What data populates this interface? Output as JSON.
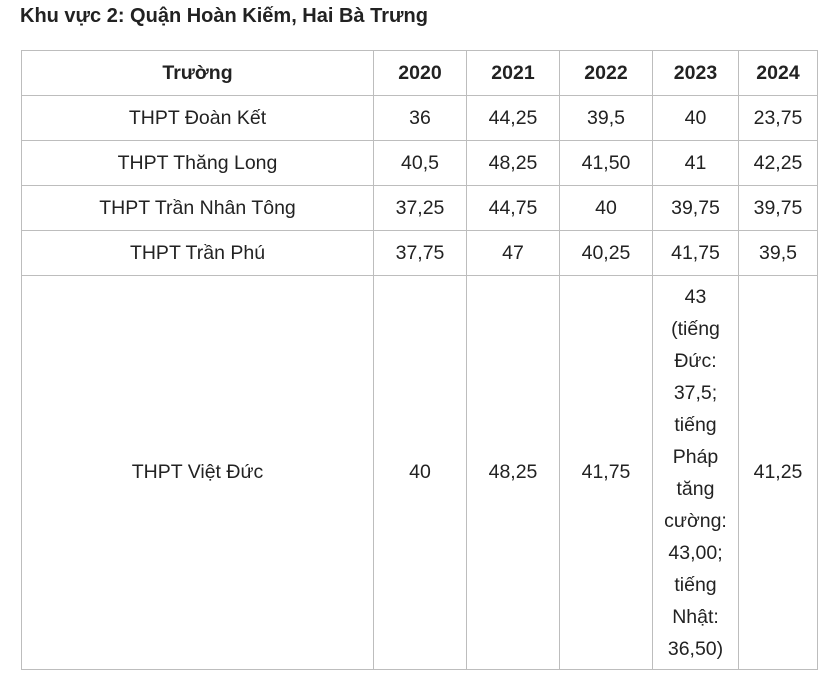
{
  "heading": "Khu vực 2: Quận Hoàn Kiếm, Hai Bà Trưng",
  "table": {
    "headers": [
      "Trường",
      "2020",
      "2021",
      "2022",
      "2023",
      "2024"
    ],
    "rows": [
      [
        "THPT Đoàn Kết",
        "36",
        "44,25",
        "39,5",
        "40",
        "23,75"
      ],
      [
        "THPT Thăng Long",
        "40,5",
        "48,25",
        "41,50",
        "41",
        "42,25"
      ],
      [
        "THPT Trần Nhân Tông",
        "37,25",
        "44,75",
        "40",
        "39,75",
        "39,75"
      ],
      [
        "THPT Trần Phú",
        "37,75",
        "47",
        "40,25",
        "41,75",
        "39,5"
      ]
    ],
    "last_row": {
      "school": "THPT Việt Đức",
      "y2020": "40",
      "y2021": "48,25",
      "y2022": "41,75",
      "y2023_lines": [
        "43",
        "(tiếng",
        "Đức:",
        "37,5;",
        "tiếng",
        "Pháp",
        "tăng",
        "cường:",
        "43,00;",
        "tiếng",
        "Nhật:",
        "36,50)"
      ],
      "y2024": "41,25"
    }
  }
}
